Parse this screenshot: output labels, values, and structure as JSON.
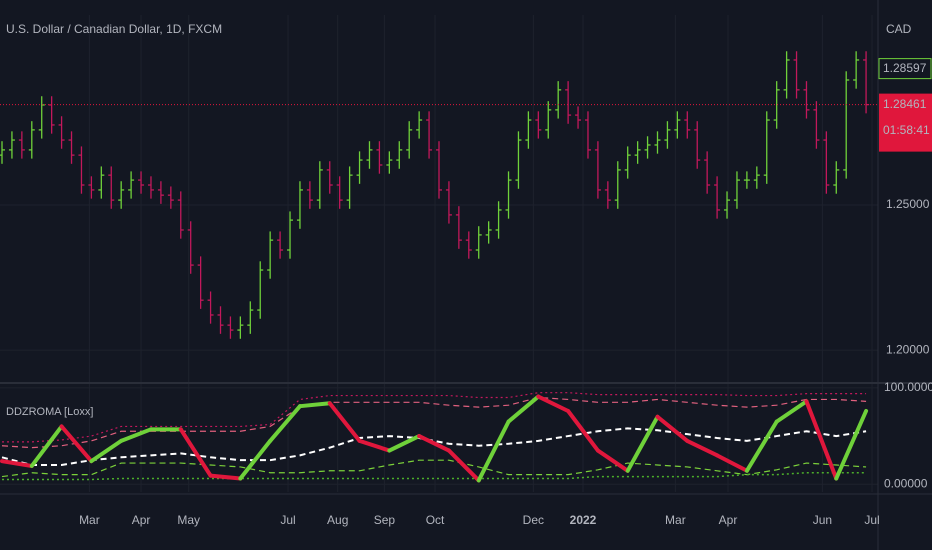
{
  "chart_data": [
    {
      "type": "ohlc",
      "title": "U.S. Dollar / Canadian Dollar, 1D, FXCM",
      "currency": "CAD",
      "open": [
        1.2672,
        1.269,
        1.2724,
        1.269,
        1.2759,
        1.2845,
        1.2776,
        1.2724,
        1.2672,
        1.2569,
        1.2552,
        1.2603,
        1.2517,
        1.2552,
        1.2586,
        1.2569,
        1.2552,
        1.2534,
        1.2517,
        1.2414,
        1.2293,
        1.2172,
        1.2121,
        1.2086,
        1.2069,
        1.2086,
        1.2138,
        1.2276,
        1.2379,
        1.2345,
        1.2448,
        1.2552,
        1.2517,
        1.2621,
        1.2569,
        1.2517,
        1.2603,
        1.2655,
        1.269,
        1.2638,
        1.2655,
        1.269,
        1.2759,
        1.2793,
        1.269,
        1.2552,
        1.2466,
        1.2379,
        1.2345,
        1.2397,
        1.2414,
        1.2483,
        1.2586,
        1.2724,
        1.2793,
        1.2759,
        1.2828,
        1.2897,
        1.281,
        1.2793,
        1.269,
        1.2552,
        1.2517,
        1.2621,
        1.2672,
        1.269,
        1.2707,
        1.2724,
        1.2759,
        1.2793,
        1.2759,
        1.2655,
        1.2569,
        1.2483,
        1.2517,
        1.2586,
        1.2586,
        1.2603,
        1.2793,
        1.2897,
        1.3,
        1.2897,
        1.2828,
        1.2724,
        1.2569,
        1.2621,
        1.2931,
        1.3
      ],
      "high": [
        1.272,
        1.2754,
        1.2754,
        1.2789,
        1.2875,
        1.2875,
        1.2806,
        1.2754,
        1.2702,
        1.2599,
        1.2633,
        1.2633,
        1.2582,
        1.2616,
        1.2616,
        1.2599,
        1.2582,
        1.2564,
        1.2547,
        1.2444,
        1.2323,
        1.2202,
        1.2151,
        1.2116,
        1.2116,
        1.2168,
        1.2306,
        1.2409,
        1.2409,
        1.2478,
        1.2582,
        1.2582,
        1.2651,
        1.2651,
        1.2599,
        1.2633,
        1.2685,
        1.272,
        1.272,
        1.2685,
        1.272,
        1.2789,
        1.2823,
        1.2823,
        1.272,
        1.2582,
        1.2496,
        1.2409,
        1.2427,
        1.2444,
        1.2513,
        1.2616,
        1.2754,
        1.2823,
        1.2823,
        1.2858,
        1.2927,
        1.2927,
        1.284,
        1.2823,
        1.272,
        1.2582,
        1.2651,
        1.2702,
        1.272,
        1.2737,
        1.2754,
        1.2789,
        1.2823,
        1.2823,
        1.2789,
        1.2685,
        1.2599,
        1.2547,
        1.2616,
        1.2616,
        1.2633,
        1.2823,
        1.2927,
        1.303,
        1.303,
        1.2927,
        1.2858,
        1.2754,
        1.2651,
        1.2961,
        1.303,
        1.303
      ],
      "low": [
        1.2642,
        1.266,
        1.266,
        1.266,
        1.2729,
        1.2746,
        1.2694,
        1.2642,
        1.2539,
        1.2522,
        1.2522,
        1.2487,
        1.2487,
        1.2522,
        1.2539,
        1.2522,
        1.2504,
        1.2487,
        1.2384,
        1.2263,
        1.2142,
        1.2091,
        1.2056,
        1.2039,
        1.2039,
        1.2056,
        1.2108,
        1.2246,
        1.2315,
        1.2315,
        1.2418,
        1.2487,
        1.2487,
        1.2539,
        1.2487,
        1.2487,
        1.2573,
        1.2625,
        1.2608,
        1.2608,
        1.2625,
        1.266,
        1.2729,
        1.266,
        1.2522,
        1.2436,
        1.2349,
        1.2315,
        1.2315,
        1.2367,
        1.2384,
        1.2453,
        1.2556,
        1.2694,
        1.2729,
        1.2729,
        1.2798,
        1.278,
        1.2763,
        1.266,
        1.2522,
        1.2487,
        1.2487,
        1.2591,
        1.2642,
        1.266,
        1.2677,
        1.2694,
        1.2729,
        1.2729,
        1.2625,
        1.2539,
        1.2453,
        1.2453,
        1.2487,
        1.2556,
        1.2556,
        1.2573,
        1.2763,
        1.2867,
        1.2867,
        1.2798,
        1.2694,
        1.2539,
        1.2539,
        1.2591,
        1.2901,
        1.2816
      ],
      "close": [
        1.269,
        1.2724,
        1.269,
        1.2759,
        1.2845,
        1.2776,
        1.2724,
        1.2672,
        1.2569,
        1.2552,
        1.2603,
        1.2517,
        1.2552,
        1.2586,
        1.2569,
        1.2552,
        1.2534,
        1.2517,
        1.2414,
        1.2293,
        1.2172,
        1.2121,
        1.2086,
        1.2069,
        1.2086,
        1.2138,
        1.2276,
        1.2379,
        1.2345,
        1.2448,
        1.2552,
        1.2517,
        1.2621,
        1.2569,
        1.2517,
        1.2603,
        1.2655,
        1.269,
        1.2638,
        1.2655,
        1.269,
        1.2759,
        1.2793,
        1.269,
        1.2552,
        1.2466,
        1.2379,
        1.2345,
        1.2397,
        1.2414,
        1.2483,
        1.2586,
        1.2724,
        1.2793,
        1.2759,
        1.2828,
        1.2897,
        1.281,
        1.2793,
        1.269,
        1.2552,
        1.2517,
        1.2621,
        1.2672,
        1.269,
        1.2707,
        1.2724,
        1.2759,
        1.2793,
        1.2759,
        1.2655,
        1.2569,
        1.2483,
        1.2517,
        1.2586,
        1.2586,
        1.2603,
        1.2793,
        1.2897,
        1.3,
        1.2897,
        1.2828,
        1.2724,
        1.2569,
        1.2621,
        1.2931,
        1.3,
        1.28461
      ],
      "up_color": "#6fd13a",
      "down_color": "#c2185b",
      "ylim": [
        1.189,
        1.3155
      ],
      "yticks": [
        {
          "value": 1.25,
          "label": "1.25000"
        },
        {
          "value": 1.2,
          "label": "1.20000"
        }
      ],
      "xlim": [
        0,
        88
      ],
      "xticks": [
        {
          "value": 8.8,
          "label": "Mar"
        },
        {
          "value": 14,
          "label": "Apr"
        },
        {
          "value": 18.8,
          "label": "May"
        },
        {
          "value": 28.8,
          "label": "Jul"
        },
        {
          "value": 33.8,
          "label": "Aug"
        },
        {
          "value": 38.5,
          "label": "Sep"
        },
        {
          "value": 43.6,
          "label": "Oct"
        },
        {
          "value": 53.5,
          "label": "Dec"
        },
        {
          "value": 58.5,
          "label": "2022",
          "bold": true
        },
        {
          "value": 67.8,
          "label": "Mar"
        },
        {
          "value": 73.1,
          "label": "Apr"
        },
        {
          "value": 82.6,
          "label": "Jun"
        },
        {
          "value": 87.6,
          "label": "Jul"
        }
      ],
      "last_price": 1.28461,
      "countdown": "01:58:41",
      "marked_price": 1.28597,
      "grid": true
    },
    {
      "type": "line",
      "title": "DDZROMA [Loxx]",
      "x": [
        0,
        3,
        6,
        9,
        12,
        15,
        18,
        21,
        24,
        27,
        30,
        33,
        36,
        39,
        42,
        45,
        48,
        51,
        54,
        57,
        60,
        63,
        66,
        69,
        72,
        75,
        78,
        81,
        84,
        87
      ],
      "xlim": [
        0,
        88
      ],
      "ylim": [
        -8,
        104
      ],
      "yticks": [
        {
          "value": 100,
          "label": "100.00000"
        },
        {
          "value": 0,
          "label": "0.00000"
        }
      ],
      "series": [
        {
          "color": "#c2185b",
          "style": "dotted",
          "width": 1.2,
          "values": [
            44,
            44,
            46,
            50,
            60,
            60,
            60,
            60,
            60,
            62,
            88,
            92,
            92,
            92,
            92,
            92,
            90,
            90,
            95,
            95,
            93,
            93,
            93,
            93,
            93,
            92,
            92,
            94,
            94,
            94
          ]
        },
        {
          "color": "#e0607e",
          "style": "dashed",
          "width": 1.2,
          "values": [
            40,
            38,
            40,
            45,
            55,
            55,
            55,
            55,
            55,
            60,
            80,
            85,
            85,
            85,
            85,
            82,
            80,
            82,
            90,
            88,
            85,
            85,
            88,
            85,
            82,
            80,
            82,
            88,
            88,
            86
          ]
        },
        {
          "color": "#ffffff",
          "style": "dashed",
          "width": 2,
          "values": [
            28,
            20,
            20,
            25,
            28,
            30,
            32,
            28,
            25,
            25,
            30,
            38,
            48,
            50,
            48,
            42,
            40,
            42,
            45,
            50,
            55,
            58,
            56,
            52,
            48,
            45,
            50,
            55,
            50,
            55
          ]
        },
        {
          "color": "#7bd13a",
          "style": "dashed",
          "width": 1.2,
          "values": [
            8,
            12,
            10,
            10,
            22,
            22,
            22,
            20,
            18,
            12,
            12,
            14,
            14,
            20,
            25,
            25,
            18,
            10,
            10,
            10,
            15,
            22,
            20,
            18,
            14,
            10,
            15,
            22,
            20,
            18
          ]
        },
        {
          "color": "#4caf2a",
          "style": "dotted",
          "width": 1.5,
          "values": [
            5,
            5,
            5,
            5,
            6,
            6,
            6,
            6,
            6,
            6,
            6,
            6,
            6,
            6,
            6,
            6,
            6,
            6,
            6,
            6,
            8,
            8,
            8,
            8,
            8,
            10,
            10,
            12,
            12,
            12
          ]
        },
        {
          "up_color": "#6fd13a",
          "down_color": "#e0173c",
          "style": "solid",
          "width": 4,
          "values": [
            24,
            19,
            60,
            24,
            45,
            57,
            57,
            9,
            6,
            45,
            81,
            84,
            45,
            35,
            50,
            35,
            4,
            65,
            91,
            76,
            35,
            14,
            70,
            45,
            30,
            14,
            65,
            86,
            6,
            76
          ]
        }
      ],
      "grid": true
    }
  ]
}
